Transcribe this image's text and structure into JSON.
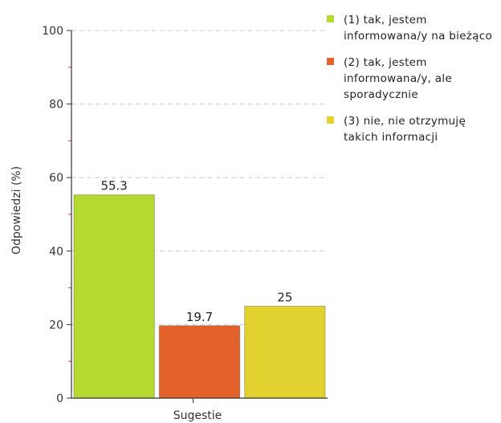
{
  "chart_data": {
    "type": "bar",
    "xlabel": "Sugestie",
    "ylabel": "Odpowiedzi (%)",
    "ylim": [
      0,
      100
    ],
    "yticks": [
      0,
      20,
      40,
      60,
      80,
      100
    ],
    "grid": true,
    "legend_position": "right",
    "categories": [
      "Sugestie"
    ],
    "series": [
      {
        "name": "(1) tak, jestem informowana/y na bieżąco",
        "values": [
          55.3
        ],
        "value_label": "55.3",
        "color": "#b5db32"
      },
      {
        "name": "(2) tak, jestem informowana/y, ale sporadycznie",
        "values": [
          19.7
        ],
        "value_label": "19.7",
        "color": "#e2622a"
      },
      {
        "name": "(3) nie, nie otrzymuję takich informacji",
        "values": [
          25
        ],
        "value_label": "25",
        "color": "#e1d22f"
      }
    ]
  }
}
